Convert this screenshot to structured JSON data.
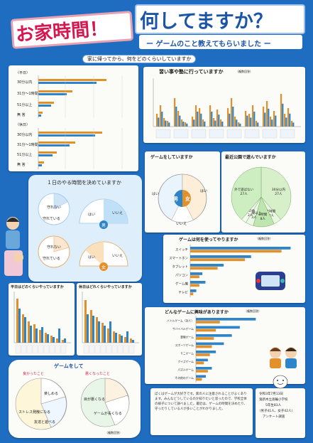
{
  "title": {
    "main_left": "お家時間！",
    "main_right": "何してますか？",
    "subtitle": "ー ゲームのこと教えてもらいました ー"
  },
  "section1": {
    "header": "家に帰ってから、何をどのくらいしていますか",
    "weekday_label": "〈平日〉",
    "holiday_label": "〈休日〉",
    "rows": [
      "30分以内",
      "31分～1時間",
      "51分以上",
      "無 答"
    ]
  },
  "lessons": {
    "header": "習い事や塾に行っていますか",
    "note": "（複数回答）"
  },
  "game_yesno": {
    "header": "ゲームをしていますか",
    "boy": "男",
    "girl": "女",
    "yes": "はい",
    "no": "いいえ",
    "chart_data": {
      "type": "pie",
      "title": "ゲームをしていますか",
      "series": [
        {
          "name": "男",
          "labels": [
            "はい",
            "いいえ"
          ],
          "values": [
            35,
            6
          ]
        },
        {
          "name": "女",
          "labels": [
            "はい",
            "いいえ"
          ],
          "values": [
            37,
            5
          ]
        }
      ]
    }
  },
  "park": {
    "header": "最近公園で遊んでいますか",
    "chart_data": {
      "type": "pie",
      "title": "最近公園で遊んでいますか",
      "labels": [
        "30分以内",
        "1時間",
        "2時間",
        "1時間以上",
        "その他",
        "外で遊ばない"
      ],
      "values": [
        27,
        3,
        8,
        3,
        2,
        27
      ],
      "value_labels": [
        "27人",
        "3人",
        "8人",
        "3人",
        "2人",
        "27人"
      ]
    }
  },
  "rules": {
    "header": "１日のやる時間を決めていますか",
    "labels": {
      "no_rule": "守れない",
      "kept": "守れている",
      "yes": "はい",
      "no": "いいえ",
      "boy": "男",
      "girl": "女"
    }
  },
  "devices": {
    "header": "ゲームは何を使ってやりますか",
    "note": "（複数回答）",
    "chart_data": {
      "type": "bar",
      "title": "ゲームは何を使ってやりますか",
      "categories": [
        "スイッチ",
        "スマートホン",
        "タブレット",
        "パソコン",
        "ゲーム機",
        "テレビ"
      ],
      "series": [
        {
          "name": "男",
          "values": [
            33,
            20,
            11,
            4,
            5,
            2
          ]
        },
        {
          "name": "女",
          "values": [
            30,
            18,
            9,
            3,
            3,
            1
          ]
        }
      ]
    }
  },
  "interest": {
    "header": "どんなゲームに興味がありますか",
    "note": "（複数回答）",
    "chart_data": {
      "type": "bar",
      "title": "どんなゲームに興味がありますか",
      "categories": [
        "バトルゲーム（対人）",
        "サバイバルゲーム",
        "冒険ゲーム",
        "スポーツゲーム",
        "ミニゲーム",
        "クイズゲーム",
        "パズルゲーム",
        "その他のゲーム"
      ],
      "series": [
        {
          "name": "男",
          "values": [
            30,
            22,
            18,
            14,
            10,
            6,
            8,
            5
          ]
        },
        {
          "name": "女",
          "values": [
            12,
            10,
            9,
            8,
            7,
            4,
            6,
            3
          ]
        }
      ]
    }
  },
  "weekday_game": {
    "header": "平日はどのくらいやっていますか"
  },
  "holiday_game": {
    "header": "休日はどれくらいやっていますか"
  },
  "after_game": {
    "header": "ゲームをして",
    "good": "良かったこと",
    "bad": "悪くなったこと",
    "note": "（複数回答）",
    "labels": [
      "楽しめる",
      "ストレス発散になる",
      "友達と遊べる",
      "目が悪くなる",
      "ゲームが長くなる"
    ]
  },
  "footer": {
    "body": "ぼくはゲームが大好きです。家の人に注意されることがよくあります。みんなどうしているのか知りたいと思ったので、学校全体の様子について調べました。最近は、ゲームの時間を決めたり、守ったりしている人が多いことがわかりました。",
    "date": "令和3年7月13日",
    "school": "鬼新木立高輪小学校",
    "grade": "5年生83人",
    "breakdown": "（男子41人、女子42人）",
    "survey": "アンケート調査"
  }
}
